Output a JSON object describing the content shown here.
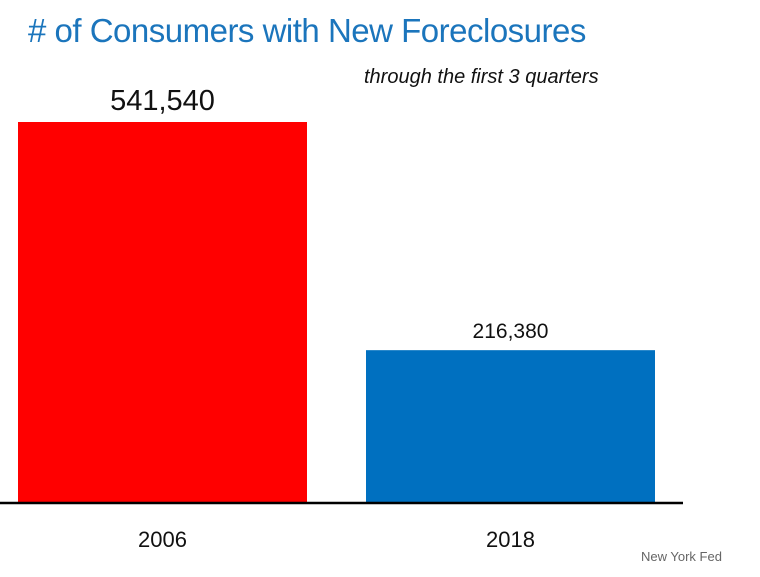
{
  "chart_data": {
    "type": "bar",
    "title": "# of Consumers with New Foreclosures",
    "subtitle": "through the first 3 quarters",
    "categories": [
      "2006",
      "2018"
    ],
    "values": [
      541540,
      216380
    ],
    "data_labels": [
      "541,540",
      "216,380"
    ],
    "colors": [
      "#ff0000",
      "#0070c0"
    ],
    "xlabel": "",
    "ylabel": "",
    "grid": false,
    "legend": "none",
    "source": "New York Fed"
  }
}
